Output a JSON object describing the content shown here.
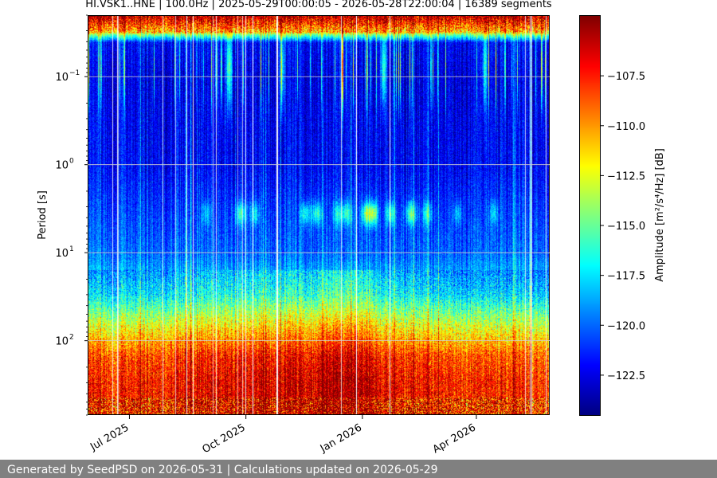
{
  "chart_data": {
    "type": "heatmap",
    "title": "HI.VSK1..HNE | 100.0Hz | 2025-05-29T00:00:05 - 2026-05-28T22:00:04 | 16389 segments",
    "ylabel": "Period [s]",
    "xlabel": "",
    "y_scale": "log",
    "y_axis_inverted": true,
    "ylim": [
      0.02,
      700
    ],
    "y_ticks": [
      {
        "value": 0.1,
        "label": "10",
        "exp": "−1"
      },
      {
        "value": 1,
        "label": "10",
        "exp": "0"
      },
      {
        "value": 10,
        "label": "10",
        "exp": "1"
      },
      {
        "value": 100,
        "label": "10",
        "exp": "2"
      }
    ],
    "xlim": [
      "2025-05-29",
      "2026-05-28"
    ],
    "x_ticks": [
      {
        "date": "2025-07-01",
        "label": "Jul 2025"
      },
      {
        "date": "2025-10-01",
        "label": "Oct 2025"
      },
      {
        "date": "2026-01-01",
        "label": "Jan 2026"
      },
      {
        "date": "2026-04-01",
        "label": "Apr 2026"
      }
    ],
    "grid": true,
    "colorbar": {
      "label": "Amplitude [m²/s⁴/Hz] [dB]",
      "range": [
        -124.5,
        -104.5
      ],
      "ticks": [
        -107.5,
        -110.0,
        -112.5,
        -115.0,
        -117.5,
        -120.0,
        -122.5
      ],
      "tick_labels": [
        "−107.5",
        "−110.0",
        "−112.5",
        "−115.0",
        "−117.5",
        "−120.0",
        "−122.5"
      ],
      "colormap": "jet"
    },
    "profile_description_db_by_period": [
      {
        "period": 0.02,
        "db": -107
      },
      {
        "period": 0.03,
        "db": -112
      },
      {
        "period": 0.04,
        "db": -122
      },
      {
        "period": 0.1,
        "db": -122.5
      },
      {
        "period": 1,
        "db": -122
      },
      {
        "period": 3,
        "db": -121
      },
      {
        "period": 10,
        "db": -120
      },
      {
        "period": 30,
        "db": -117
      },
      {
        "period": 70,
        "db": -112
      },
      {
        "period": 150,
        "db": -108
      },
      {
        "period": 300,
        "db": -107
      }
    ]
  },
  "footer": {
    "text": "Generated by SeedPSD on 2026-05-31 | Calculations updated on 2026-05-29"
  }
}
